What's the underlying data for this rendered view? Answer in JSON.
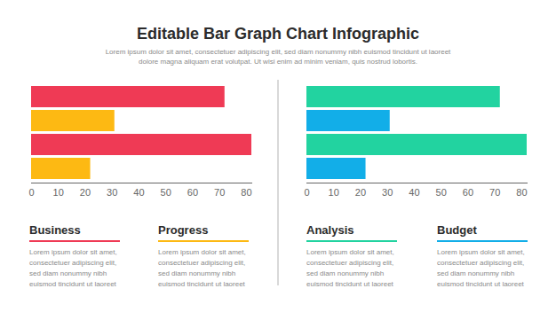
{
  "header": {
    "title": "Editable Bar Graph Chart Infographic",
    "subtitle": [
      "Lorem ipsum dolor sit amet, consectetuer adipiscing elit, sed diam nonummy nibh euismod tincidunt ut laoreet",
      "dolore magna aliquam erat volutpat. Ut wisi enim ad minim veniam, quis nostrud lobortis."
    ]
  },
  "chart_data": [
    {
      "type": "bar",
      "orientation": "horizontal",
      "categories": [
        null,
        null,
        null,
        null
      ],
      "values": [
        72,
        31,
        82,
        22
      ],
      "colors": [
        "#ef3a55",
        "#fdb913",
        "#ef3a55",
        "#fdb913"
      ],
      "xlim": [
        0,
        82
      ],
      "xticks": [
        0,
        10,
        20,
        30,
        40,
        50,
        60,
        70,
        80
      ],
      "grid": false,
      "tick_labels": "x"
    },
    {
      "type": "bar",
      "orientation": "horizontal",
      "categories": [
        null,
        null,
        null,
        null
      ],
      "values": [
        72,
        31,
        82,
        22
      ],
      "colors": [
        "#22d3a0",
        "#12aee8",
        "#22d3a0",
        "#12aee8"
      ],
      "xlim": [
        0,
        82
      ],
      "xticks": [
        0,
        10,
        20,
        30,
        40,
        50,
        60,
        70,
        80
      ],
      "grid": false,
      "tick_labels": "x"
    }
  ],
  "sections": [
    {
      "heading": "Business",
      "color": "#ef3a55",
      "text": [
        "Lorem ipsum dolor sit amet,",
        "consectetuer adipiscing elit,",
        "sed diam nonummy nibh",
        "euismod tincidunt ut laoreet"
      ]
    },
    {
      "heading": "Progress",
      "color": "#fdb913",
      "text": [
        "Lorem ipsum dolor sit amet,",
        "consectetuer adipiscing elit,",
        "sed diam nonummy nibh",
        "euismod tincidunt ut laoreet"
      ]
    },
    {
      "heading": "Analysis",
      "color": "#22d3a0",
      "text": [
        "Lorem ipsum dolor sit amet,",
        "consectetuer adipiscing elit,",
        "sed diam nonummy nibh",
        "euismod tincidunt ut laoreet"
      ]
    },
    {
      "heading": "Budget",
      "color": "#12aee8",
      "text": [
        "Lorem ipsum dolor sit amet,",
        "consectetuer adipiscing elit,",
        "sed diam nonummy nibh",
        "euismod tincidunt ut laoreet"
      ]
    }
  ]
}
